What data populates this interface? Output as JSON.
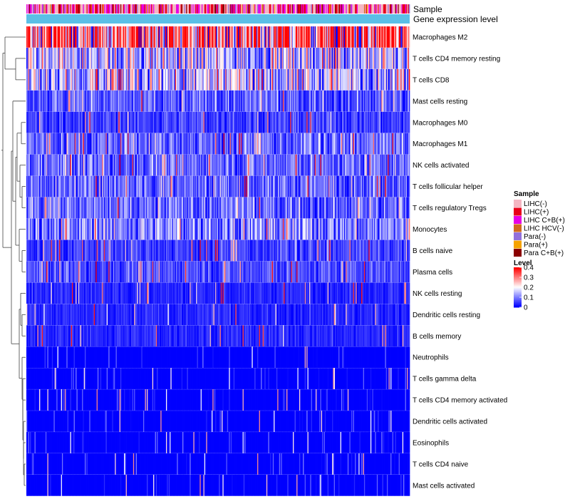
{
  "chart_data": {
    "type": "heatmap",
    "title": "",
    "columns_count": 420,
    "annotations": [
      {
        "label": "Sample"
      },
      {
        "label": "Gene expression level",
        "color": "#5bbfe6"
      }
    ],
    "rows": [
      {
        "name": "Macrophages M2",
        "mean": 0.3
      },
      {
        "name": "T cells CD4 memory resting",
        "mean": 0.14
      },
      {
        "name": "T cells CD8",
        "mean": 0.15
      },
      {
        "name": "Mast cells resting",
        "mean": 0.07
      },
      {
        "name": "Macrophages M0",
        "mean": 0.05
      },
      {
        "name": "Macrophages M1",
        "mean": 0.08
      },
      {
        "name": "NK cells activated",
        "mean": 0.08
      },
      {
        "name": "T cells follicular helper",
        "mean": 0.08
      },
      {
        "name": "T cells regulatory  Tregs",
        "mean": 0.08
      },
      {
        "name": "Monocytes",
        "mean": 0.1
      },
      {
        "name": "B cells naive",
        "mean": 0.05
      },
      {
        "name": "Plasma cells",
        "mean": 0.06
      },
      {
        "name": "NK cells resting",
        "mean": 0.03
      },
      {
        "name": "Dendritic cells resting",
        "mean": 0.03
      },
      {
        "name": "B cells memory",
        "mean": 0.03
      },
      {
        "name": "Neutrophils",
        "mean": 0.01
      },
      {
        "name": "T cells gamma delta",
        "mean": 0.01
      },
      {
        "name": "T cells CD4 memory activated",
        "mean": 0.01
      },
      {
        "name": "Dendritic cells activated",
        "mean": 0.01
      },
      {
        "name": "Eosinophils",
        "mean": 0.01
      },
      {
        "name": "T cells CD4 naive",
        "mean": 0.01
      },
      {
        "name": "Mast cells activated",
        "mean": 0.01
      }
    ],
    "sample_legend": {
      "title": "Sample",
      "entries": [
        {
          "label": "LIHC(-)",
          "color": "#f4b6c2"
        },
        {
          "label": "LIHC(+)",
          "color": "#e8001a"
        },
        {
          "label": "LIHC C+B(+)",
          "color": "#e600e6"
        },
        {
          "label": "LIHC HCV(-)",
          "color": "#d2691e"
        },
        {
          "label": "Para(-)",
          "color": "#9370db"
        },
        {
          "label": "Para(+)",
          "color": "#f5a300"
        },
        {
          "label": "Para C+B(+)",
          "color": "#8b0000"
        }
      ]
    },
    "level_legend": {
      "title": "Level",
      "ticks": [
        "0.4",
        "0.3",
        "0.2",
        "0.1",
        "0"
      ],
      "range": [
        0,
        0.4
      ],
      "colors": {
        "low": "#0000ff",
        "mid": "#ffffff",
        "high": "#ff0000"
      }
    }
  }
}
